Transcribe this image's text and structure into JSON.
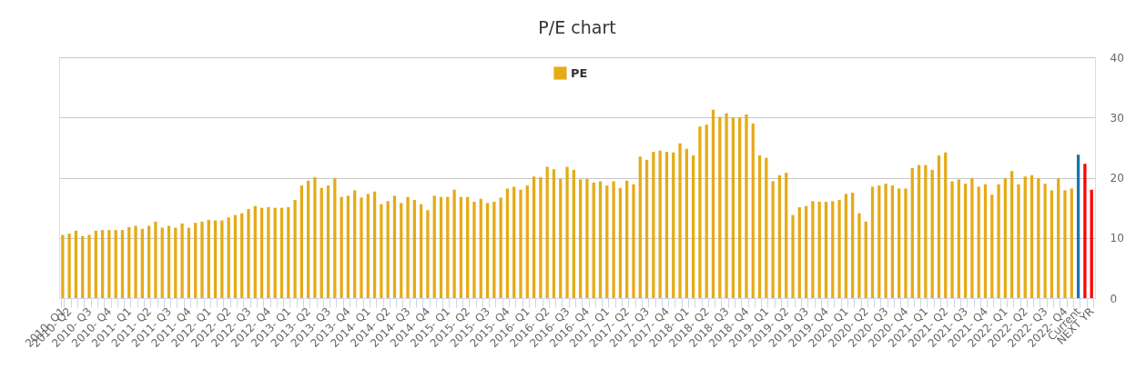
{
  "chart_data": {
    "type": "bar",
    "title": "P/E chart",
    "categories": [
      "2010- Q1",
      "2010- Q2",
      null,
      null,
      "2010- Q3",
      null,
      null,
      "2010- Q4",
      null,
      null,
      "2011- Q1",
      null,
      null,
      "2011- Q2",
      null,
      null,
      "2011- Q3",
      null,
      null,
      "2011- Q4",
      null,
      null,
      "2012- Q1",
      null,
      null,
      "2012- Q2",
      null,
      null,
      "2012- Q3",
      null,
      null,
      "2012- Q4",
      null,
      null,
      "2013- Q1",
      null,
      null,
      "2013- Q2",
      null,
      null,
      "2013- Q3",
      null,
      null,
      "2013- Q4",
      null,
      null,
      "2014- Q1",
      null,
      null,
      "2014- Q2",
      null,
      null,
      "2014- Q3",
      null,
      null,
      "2014- Q4",
      null,
      null,
      "2015- Q1",
      null,
      null,
      "2015- Q2",
      null,
      null,
      "2015- Q3",
      null,
      null,
      "2015- Q4",
      null,
      null,
      "2016- Q1",
      null,
      null,
      "2016- Q2",
      null,
      null,
      "2016- Q3",
      null,
      null,
      "2016- Q4",
      null,
      null,
      "2017- Q1",
      null,
      null,
      "2017- Q2",
      null,
      null,
      "2017- Q3",
      null,
      null,
      "2017- Q4",
      null,
      null,
      "2018- Q1",
      null,
      null,
      "2018- Q2",
      null,
      null,
      "2018- Q3",
      null,
      null,
      "2018- Q4",
      null,
      null,
      "2019- Q1",
      null,
      null,
      "2019- Q2",
      null,
      null,
      "2019- Q3",
      null,
      null,
      "2019- Q4",
      null,
      null,
      "2020- Q1",
      null,
      null,
      "2020- Q2",
      null,
      null,
      "2020- Q3",
      null,
      null,
      "2020- Q4",
      null,
      null,
      "2021- Q1",
      null,
      null,
      "2021- Q2",
      null,
      null,
      "2021- Q3",
      null,
      null,
      "2021- Q4",
      null,
      null,
      "2022- Q1",
      null,
      null,
      "2022- Q2",
      null,
      null,
      "2022- Q3",
      null,
      null,
      "2022- Q4",
      null,
      "Current",
      null,
      "NEXT YR"
    ],
    "series": [
      {
        "name": "PE",
        "color": "#e5ab17",
        "values": [
          10.5,
          10.7,
          11.2,
          10.3,
          10.5,
          11.2,
          11.3,
          11.3,
          11.3,
          11.3,
          11.8,
          12.0,
          11.5,
          12.0,
          12.7,
          11.7,
          12.0,
          11.7,
          12.4,
          11.7,
          12.5,
          12.7,
          13.0,
          12.9,
          12.9,
          13.4,
          13.8,
          14.1,
          14.8,
          15.3,
          15.0,
          15.1,
          15.0,
          15.0,
          15.1,
          16.3,
          18.7,
          19.5,
          20.1,
          18.3,
          18.7,
          19.9,
          16.8,
          17.0,
          17.9,
          16.7,
          17.3,
          17.7,
          15.6,
          16.1,
          17.0,
          15.8,
          16.8,
          16.3,
          15.6,
          14.6,
          17.0,
          16.8,
          16.8,
          18.0,
          16.8,
          16.8,
          16.0,
          16.5,
          15.8,
          16.0,
          16.7,
          18.2,
          18.5,
          18.0,
          18.7,
          20.2,
          20.1,
          21.8,
          21.4,
          19.8,
          21.8,
          21.3,
          19.7,
          19.8,
          19.2,
          19.4,
          18.7,
          19.4,
          18.3,
          19.5,
          18.9,
          23.5,
          23.0,
          24.3,
          24.5,
          24.3,
          24.2,
          25.7,
          24.8,
          23.7,
          28.5,
          28.8,
          31.3,
          30.1,
          30.7,
          30.0,
          30.0,
          30.5,
          29.0,
          23.7,
          23.3,
          19.4,
          20.4,
          20.8,
          13.8,
          15.1,
          15.3,
          16.1,
          16.0,
          16.0,
          16.1,
          16.3,
          17.3,
          17.5,
          14.1,
          12.7,
          18.5,
          18.7,
          19.0,
          18.7,
          18.2,
          18.2,
          21.6,
          22.1,
          22.1,
          21.3,
          23.7,
          24.2,
          19.4,
          19.7,
          19.0,
          19.9,
          18.5,
          18.9,
          17.2,
          18.9,
          19.9,
          21.1,
          18.9,
          20.2,
          20.4,
          19.9,
          19.0,
          17.9,
          19.9,
          17.9,
          18.2,
          23.8,
          22.3,
          18.0
        ],
        "colors": [
          "#e5ab17",
          "#e5ab17",
          "#e5ab17",
          "#e5ab17",
          "#e5ab17",
          "#e5ab17",
          "#e5ab17",
          "#e5ab17",
          "#e5ab17",
          "#e5ab17",
          "#e5ab17",
          "#e5ab17",
          "#e5ab17",
          "#e5ab17",
          "#e5ab17",
          "#e5ab17",
          "#e5ab17",
          "#e5ab17",
          "#e5ab17",
          "#e5ab17",
          "#e5ab17",
          "#e5ab17",
          "#e5ab17",
          "#e5ab17",
          "#e5ab17",
          "#e5ab17",
          "#e5ab17",
          "#e5ab17",
          "#e5ab17",
          "#e5ab17",
          "#e5ab17",
          "#e5ab17",
          "#e5ab17",
          "#e5ab17",
          "#e5ab17",
          "#e5ab17",
          "#e5ab17",
          "#e5ab17",
          "#e5ab17",
          "#e5ab17",
          "#e5ab17",
          "#e5ab17",
          "#e5ab17",
          "#e5ab17",
          "#e5ab17",
          "#e5ab17",
          "#e5ab17",
          "#e5ab17",
          "#e5ab17",
          "#e5ab17",
          "#e5ab17",
          "#e5ab17",
          "#e5ab17",
          "#e5ab17",
          "#e5ab17",
          "#e5ab17",
          "#e5ab17",
          "#e5ab17",
          "#e5ab17",
          "#e5ab17",
          "#e5ab17",
          "#e5ab17",
          "#e5ab17",
          "#e5ab17",
          "#e5ab17",
          "#e5ab17",
          "#e5ab17",
          "#e5ab17",
          "#e5ab17",
          "#e5ab17",
          "#e5ab17",
          "#e5ab17",
          "#e5ab17",
          "#e5ab17",
          "#e5ab17",
          "#e5ab17",
          "#e5ab17",
          "#e5ab17",
          "#e5ab17",
          "#e5ab17",
          "#e5ab17",
          "#e5ab17",
          "#e5ab17",
          "#e5ab17",
          "#e5ab17",
          "#e5ab17",
          "#e5ab17",
          "#e5ab17",
          "#e5ab17",
          "#e5ab17",
          "#e5ab17",
          "#e5ab17",
          "#e5ab17",
          "#e5ab17",
          "#e5ab17",
          "#e5ab17",
          "#e5ab17",
          "#e5ab17",
          "#e5ab17",
          "#e5ab17",
          "#e5ab17",
          "#e5ab17",
          "#e5ab17",
          "#e5ab17",
          "#e5ab17",
          "#e5ab17",
          "#e5ab17",
          "#e5ab17",
          "#e5ab17",
          "#e5ab17",
          "#e5ab17",
          "#e5ab17",
          "#e5ab17",
          "#e5ab17",
          "#e5ab17",
          "#e5ab17",
          "#e5ab17",
          "#e5ab17",
          "#e5ab17",
          "#e5ab17",
          "#e5ab17",
          "#e5ab17",
          "#e5ab17",
          "#e5ab17",
          "#e5ab17",
          "#e5ab17",
          "#e5ab17",
          "#e5ab17",
          "#e5ab17",
          "#e5ab17",
          "#e5ab17",
          "#e5ab17",
          "#e5ab17",
          "#e5ab17",
          "#e5ab17",
          "#e5ab17",
          "#e5ab17",
          "#e5ab17",
          "#e5ab17",
          "#e5ab17",
          "#e5ab17",
          "#e5ab17",
          "#e5ab17",
          "#e5ab17",
          "#e5ab17",
          "#e5ab17",
          "#e5ab17",
          "#e5ab17",
          "#e5ab17",
          "#e5ab17",
          "#e5ab17",
          "#e5ab17",
          "#e5ab17",
          "#1c75b0",
          "#ff0000",
          "#ff0000"
        ]
      }
    ],
    "ylim": [
      0,
      40
    ],
    "yticks": [
      0,
      10,
      20,
      30,
      40
    ],
    "grid": "y",
    "legend": "top"
  }
}
